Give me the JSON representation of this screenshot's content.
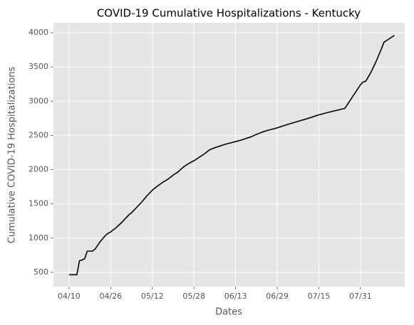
{
  "chart_data": {
    "type": "line",
    "title": "COVID-19 Cumulative Hospitalizations - Kentucky",
    "x_label": "Dates",
    "y_label": "Cumulative COVID-19 Hospitalizations",
    "x": [
      "04/10",
      "04/13",
      "04/14",
      "04/15",
      "04/16",
      "04/17",
      "04/19",
      "04/20",
      "04/22",
      "04/24",
      "04/25",
      "04/26",
      "04/28",
      "04/30",
      "05/02",
      "05/03",
      "05/04",
      "05/06",
      "05/08",
      "05/10",
      "05/12",
      "05/14",
      "05/16",
      "05/18",
      "05/20",
      "05/22",
      "05/24",
      "05/26",
      "05/28",
      "05/30",
      "06/01",
      "06/03",
      "06/05",
      "06/07",
      "06/09",
      "06/11",
      "06/13",
      "06/15",
      "06/17",
      "06/19",
      "06/21",
      "06/23",
      "06/25",
      "06/27",
      "06/29",
      "07/03",
      "07/07",
      "07/11",
      "07/15",
      "07/19",
      "07/25",
      "07/31",
      "08/01",
      "08/02",
      "08/04",
      "08/06",
      "08/08",
      "08/09",
      "08/11",
      "08/13"
    ],
    "series": [
      {
        "name": "Kentucky",
        "color": "#000000",
        "values": [
          465,
          465,
          670,
          680,
          700,
          810,
          810,
          840,
          950,
          1040,
          1070,
          1090,
          1150,
          1220,
          1300,
          1340,
          1370,
          1450,
          1530,
          1620,
          1700,
          1760,
          1815,
          1860,
          1920,
          1970,
          2040,
          2090,
          2130,
          2180,
          2230,
          2290,
          2320,
          2345,
          2370,
          2390,
          2410,
          2430,
          2455,
          2480,
          2515,
          2545,
          2570,
          2590,
          2610,
          2660,
          2705,
          2750,
          2800,
          2840,
          2895,
          3240,
          3280,
          3290,
          3420,
          3580,
          3760,
          3860,
          3910,
          3960
        ]
      }
    ],
    "xlim": [
      "04/04",
      "08/17"
    ],
    "xticks": [
      "04/10",
      "04/26",
      "05/12",
      "05/28",
      "06/13",
      "06/29",
      "07/15",
      "07/31"
    ],
    "ylim": [
      292,
      4145
    ],
    "yticks": [
      500,
      1000,
      1500,
      2000,
      2500,
      3000,
      3500,
      4000
    ],
    "grid": true
  }
}
